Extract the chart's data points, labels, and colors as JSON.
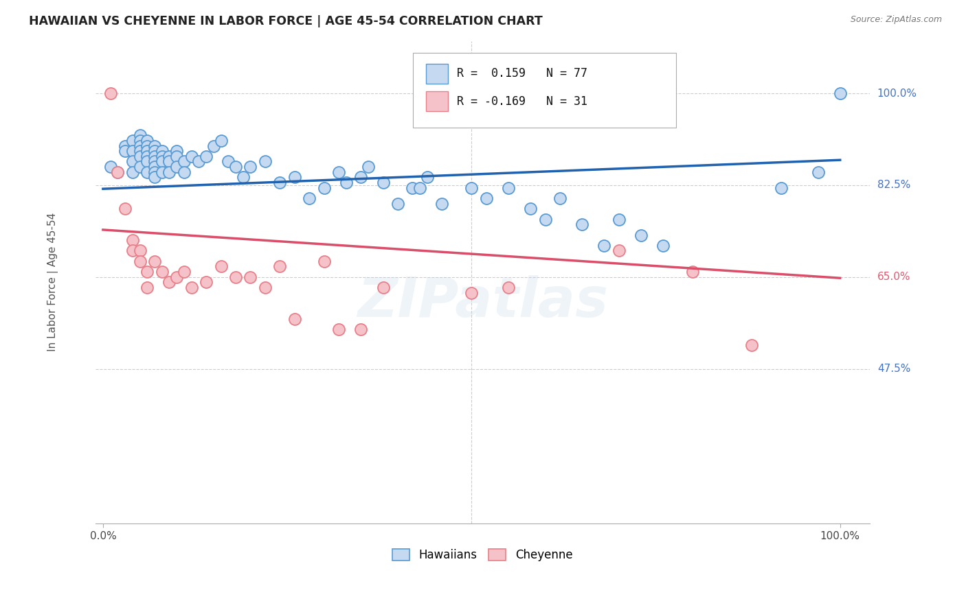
{
  "title": "HAWAIIAN VS CHEYENNE IN LABOR FORCE | AGE 45-54 CORRELATION CHART",
  "source": "Source: ZipAtlas.com",
  "ylabel": "In Labor Force | Age 45-54",
  "watermark": "ZIPatlas",
  "legend_blue_R": 0.159,
  "legend_blue_N": 77,
  "legend_pink_R": -0.169,
  "legend_pink_N": 31,
  "xlim": [
    -0.01,
    1.04
  ],
  "ylim": [
    0.18,
    1.1
  ],
  "ytick_positions": [
    0.475,
    0.65,
    0.825,
    1.0
  ],
  "ytick_labels": [
    "47.5%",
    "65.0%",
    "82.5%",
    "100.0%"
  ],
  "ytick_colors": [
    "#4472c4",
    "#e05a70",
    "#4472c4",
    "#4472c4"
  ],
  "blue_fill": "#c5d9f1",
  "blue_edge": "#5a9bd4",
  "pink_fill": "#f4c2c8",
  "pink_edge": "#e8808a",
  "trend_blue": "#2062ae",
  "trend_pink": "#d94f6a",
  "grid_color": "#cccccc",
  "blue_trend_y0": 0.818,
  "blue_trend_y1": 0.873,
  "pink_trend_y0": 0.74,
  "pink_trend_y1": 0.648,
  "hawaiians_x": [
    0.01,
    0.02,
    0.03,
    0.03,
    0.04,
    0.04,
    0.04,
    0.04,
    0.05,
    0.05,
    0.05,
    0.05,
    0.05,
    0.05,
    0.06,
    0.06,
    0.06,
    0.06,
    0.06,
    0.06,
    0.07,
    0.07,
    0.07,
    0.07,
    0.07,
    0.07,
    0.07,
    0.08,
    0.08,
    0.08,
    0.08,
    0.09,
    0.09,
    0.09,
    0.1,
    0.1,
    0.1,
    0.11,
    0.11,
    0.12,
    0.13,
    0.14,
    0.15,
    0.16,
    0.17,
    0.18,
    0.19,
    0.2,
    0.22,
    0.24,
    0.26,
    0.28,
    0.3,
    0.32,
    0.33,
    0.35,
    0.36,
    0.38,
    0.4,
    0.42,
    0.43,
    0.44,
    0.46,
    0.5,
    0.52,
    0.55,
    0.58,
    0.6,
    0.62,
    0.65,
    0.68,
    0.7,
    0.73,
    0.76,
    0.92,
    0.97,
    1.0
  ],
  "hawaiians_y": [
    0.86,
    0.85,
    0.9,
    0.89,
    0.91,
    0.89,
    0.87,
    0.85,
    0.92,
    0.91,
    0.9,
    0.89,
    0.88,
    0.86,
    0.91,
    0.9,
    0.89,
    0.88,
    0.87,
    0.85,
    0.9,
    0.89,
    0.88,
    0.87,
    0.86,
    0.85,
    0.84,
    0.89,
    0.88,
    0.87,
    0.85,
    0.88,
    0.87,
    0.85,
    0.89,
    0.88,
    0.86,
    0.87,
    0.85,
    0.88,
    0.87,
    0.88,
    0.9,
    0.91,
    0.87,
    0.86,
    0.84,
    0.86,
    0.87,
    0.83,
    0.84,
    0.8,
    0.82,
    0.85,
    0.83,
    0.84,
    0.86,
    0.83,
    0.79,
    0.82,
    0.82,
    0.84,
    0.79,
    0.82,
    0.8,
    0.82,
    0.78,
    0.76,
    0.8,
    0.75,
    0.71,
    0.76,
    0.73,
    0.71,
    0.82,
    0.85,
    1.0
  ],
  "cheyenne_x": [
    0.01,
    0.02,
    0.03,
    0.04,
    0.04,
    0.05,
    0.05,
    0.06,
    0.06,
    0.07,
    0.08,
    0.09,
    0.1,
    0.11,
    0.12,
    0.14,
    0.16,
    0.18,
    0.2,
    0.22,
    0.24,
    0.26,
    0.3,
    0.32,
    0.35,
    0.38,
    0.5,
    0.55,
    0.7,
    0.8,
    0.88
  ],
  "cheyenne_y": [
    1.0,
    0.85,
    0.78,
    0.72,
    0.7,
    0.7,
    0.68,
    0.66,
    0.63,
    0.68,
    0.66,
    0.64,
    0.65,
    0.66,
    0.63,
    0.64,
    0.67,
    0.65,
    0.65,
    0.63,
    0.67,
    0.57,
    0.68,
    0.55,
    0.55,
    0.63,
    0.62,
    0.63,
    0.7,
    0.66,
    0.52
  ]
}
